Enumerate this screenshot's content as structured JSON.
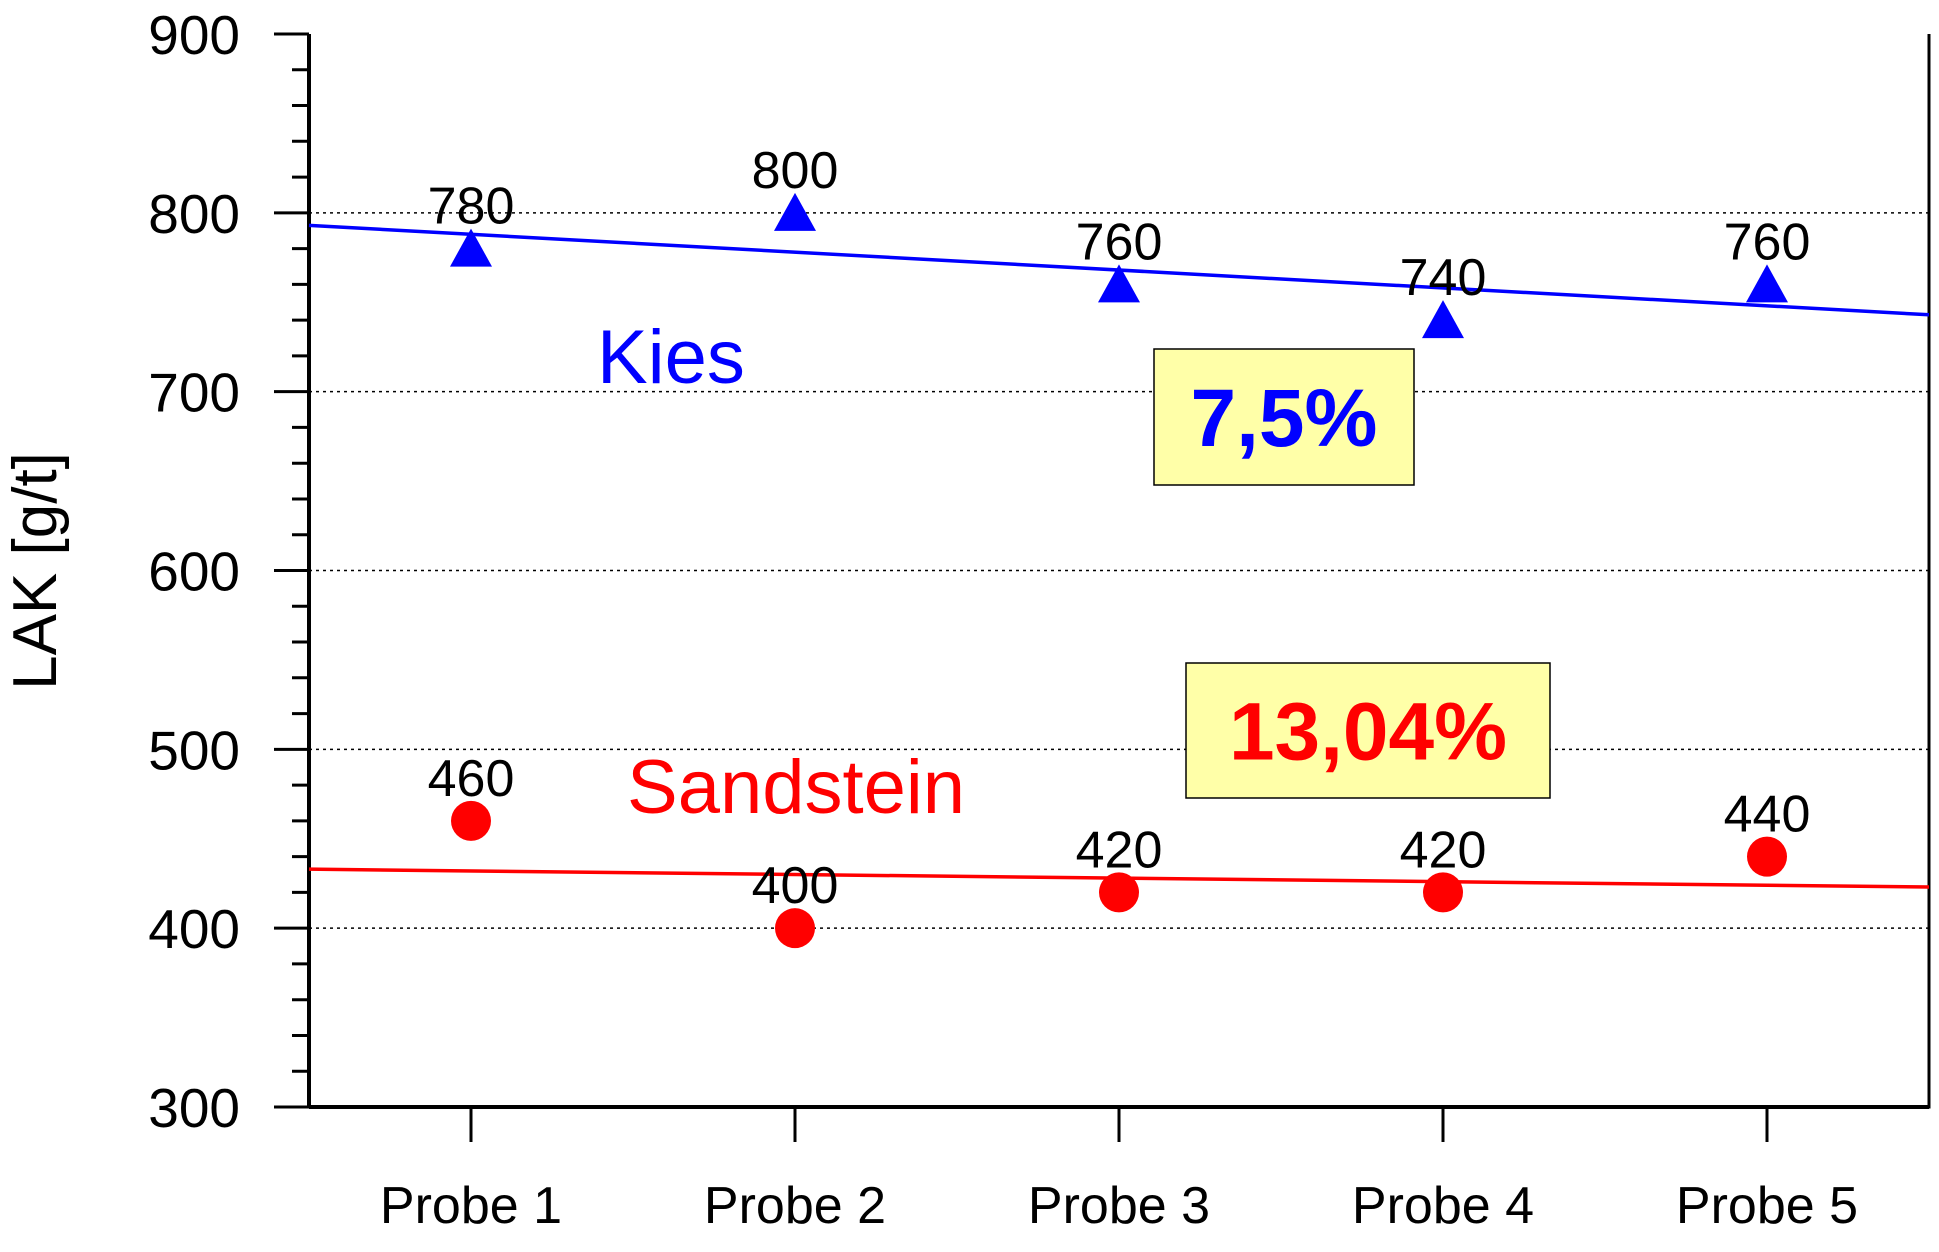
{
  "chart_data": {
    "type": "scatter",
    "y_label": "LAK [g/t]",
    "categories": [
      "Probe 1",
      "Probe 2",
      "Probe 3",
      "Probe 4",
      "Probe 5"
    ],
    "series": [
      {
        "name": "Kies",
        "color": "#0000ff",
        "marker": "triangle",
        "values": [
          780,
          800,
          760,
          740,
          760
        ]
      },
      {
        "name": "Sandstein",
        "color": "#ff0000",
        "marker": "circle",
        "values": [
          460,
          400,
          420,
          420,
          440
        ]
      }
    ],
    "trendline": "linear",
    "annotations": [
      {
        "text": "7,5%",
        "color": "#0000ff",
        "background": "#ffffa8"
      },
      {
        "text": "13,04%",
        "color": "#ff0000",
        "background": "#ffffa8"
      }
    ],
    "ylim": [
      300,
      900
    ],
    "yticks": [
      300,
      400,
      500,
      600,
      700,
      800,
      900
    ],
    "yminor_per_major": 4,
    "grid": true
  }
}
